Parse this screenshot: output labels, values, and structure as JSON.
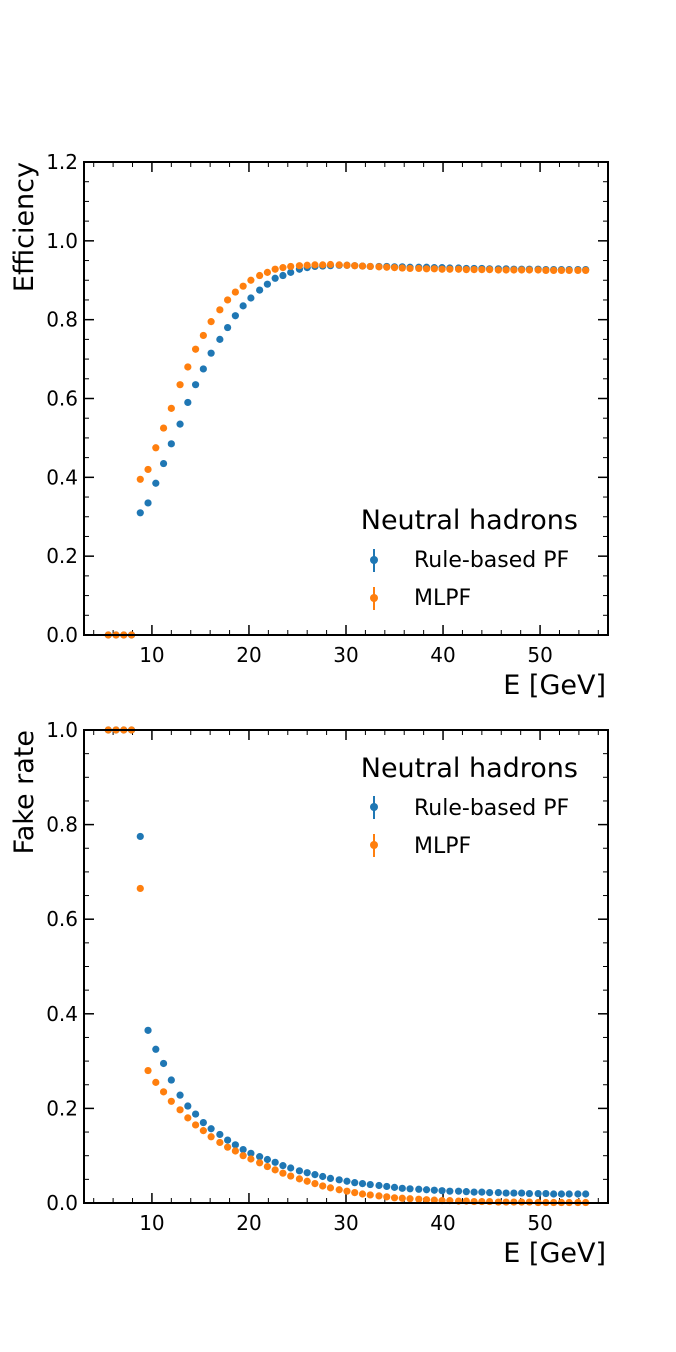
{
  "colors": {
    "rule_based": "#1f77b4",
    "mlpf": "#ff7f0e",
    "axes": "#000000",
    "background": "#ffffff"
  },
  "chart_data": [
    {
      "type": "scatter",
      "ylabel": "Efficiency",
      "xlabel": "E [GeV]",
      "xlim": [
        3,
        57
      ],
      "ylim": [
        0,
        1.2
      ],
      "xticks": [
        10,
        20,
        30,
        40,
        50
      ],
      "xtick_labels": [
        "10",
        "20",
        "30",
        "40",
        "50"
      ],
      "yticks": [
        0,
        0.2,
        0.4,
        0.6,
        0.8,
        1.0,
        1.2
      ],
      "ytick_labels": [
        "0.0",
        "0.2",
        "0.4",
        "0.6",
        "0.8",
        "1.0",
        "1.2"
      ],
      "grid": false,
      "legend_position": "lower-right",
      "legend": {
        "title": "Neutral hadrons",
        "entries": [
          "Rule-based PF",
          "MLPF"
        ]
      },
      "series": [
        {
          "name": "Rule-based PF",
          "color": "#1f77b4",
          "x": [
            5.5,
            6.3,
            7.1,
            7.9,
            8.8,
            9.6,
            10.4,
            11.2,
            12.0,
            12.9,
            13.7,
            14.5,
            15.3,
            16.1,
            17.0,
            17.8,
            18.6,
            19.4,
            20.2,
            21.1,
            21.9,
            22.7,
            23.5,
            24.3,
            25.2,
            26.0,
            26.8,
            27.6,
            28.4,
            29.3,
            30.1,
            30.9,
            31.7,
            32.5,
            33.4,
            34.2,
            35.0,
            35.8,
            36.6,
            37.5,
            38.3,
            39.1,
            39.9,
            40.7,
            41.6,
            42.4,
            43.2,
            44.0,
            44.8,
            45.7,
            46.5,
            47.3,
            48.1,
            48.9,
            49.8,
            50.6,
            51.4,
            52.2,
            53.0,
            53.9,
            54.7
          ],
          "y": [
            0.0,
            0.0,
            0.0,
            0.0,
            0.31,
            0.335,
            0.385,
            0.435,
            0.485,
            0.535,
            0.59,
            0.635,
            0.675,
            0.715,
            0.75,
            0.78,
            0.81,
            0.835,
            0.855,
            0.875,
            0.89,
            0.905,
            0.912,
            0.92,
            0.928,
            0.932,
            0.935,
            0.936,
            0.937,
            0.938,
            0.938,
            0.937,
            0.936,
            0.935,
            0.935,
            0.935,
            0.934,
            0.934,
            0.933,
            0.933,
            0.933,
            0.932,
            0.932,
            0.931,
            0.931,
            0.93,
            0.93,
            0.93,
            0.929,
            0.929,
            0.929,
            0.928,
            0.928,
            0.928,
            0.928,
            0.927,
            0.927,
            0.927,
            0.927,
            0.927,
            0.927
          ]
        },
        {
          "name": "MLPF",
          "color": "#ff7f0e",
          "x": [
            5.5,
            6.3,
            7.1,
            7.9,
            8.8,
            9.6,
            10.4,
            11.2,
            12.0,
            12.9,
            13.7,
            14.5,
            15.3,
            16.1,
            17.0,
            17.8,
            18.6,
            19.4,
            20.2,
            21.1,
            21.9,
            22.7,
            23.5,
            24.3,
            25.2,
            26.0,
            26.8,
            27.6,
            28.4,
            29.3,
            30.1,
            30.9,
            31.7,
            32.5,
            33.4,
            34.2,
            35.0,
            35.8,
            36.6,
            37.5,
            38.3,
            39.1,
            39.9,
            40.7,
            41.6,
            42.4,
            43.2,
            44.0,
            44.8,
            45.7,
            46.5,
            47.3,
            48.1,
            48.9,
            49.8,
            50.6,
            51.4,
            52.2,
            53.0,
            53.9,
            54.7
          ],
          "y": [
            0.0,
            0.0,
            0.0,
            0.0,
            0.395,
            0.42,
            0.475,
            0.525,
            0.575,
            0.635,
            0.68,
            0.725,
            0.76,
            0.795,
            0.825,
            0.85,
            0.87,
            0.885,
            0.9,
            0.912,
            0.92,
            0.928,
            0.932,
            0.935,
            0.937,
            0.938,
            0.939,
            0.939,
            0.94,
            0.939,
            0.938,
            0.937,
            0.936,
            0.935,
            0.934,
            0.933,
            0.932,
            0.931,
            0.93,
            0.93,
            0.929,
            0.929,
            0.928,
            0.928,
            0.928,
            0.927,
            0.927,
            0.927,
            0.927,
            0.926,
            0.926,
            0.926,
            0.926,
            0.926,
            0.926,
            0.925,
            0.925,
            0.925,
            0.925,
            0.925,
            0.925
          ]
        }
      ]
    },
    {
      "type": "scatter",
      "ylabel": "Fake rate",
      "xlabel": "E [GeV]",
      "xlim": [
        3,
        57
      ],
      "ylim": [
        0,
        1.0
      ],
      "xticks": [
        10,
        20,
        30,
        40,
        50
      ],
      "xtick_labels": [
        "10",
        "20",
        "30",
        "40",
        "50"
      ],
      "yticks": [
        0,
        0.2,
        0.4,
        0.6,
        0.8,
        1.0
      ],
      "ytick_labels": [
        "0.0",
        "0.2",
        "0.4",
        "0.6",
        "0.8",
        "1.0"
      ],
      "grid": false,
      "legend_position": "top-right",
      "legend": {
        "title": "Neutral hadrons",
        "entries": [
          "Rule-based PF",
          "MLPF"
        ]
      },
      "series": [
        {
          "name": "Rule-based PF",
          "color": "#1f77b4",
          "x": [
            5.5,
            6.3,
            7.1,
            7.9,
            8.8,
            9.6,
            10.4,
            11.2,
            12.0,
            12.9,
            13.7,
            14.5,
            15.3,
            16.1,
            17.0,
            17.8,
            18.6,
            19.4,
            20.2,
            21.1,
            21.9,
            22.7,
            23.5,
            24.3,
            25.2,
            26.0,
            26.8,
            27.6,
            28.4,
            29.3,
            30.1,
            30.9,
            31.7,
            32.5,
            33.4,
            34.2,
            35.0,
            35.8,
            36.6,
            37.5,
            38.3,
            39.1,
            39.9,
            40.7,
            41.6,
            42.4,
            43.2,
            44.0,
            44.8,
            45.7,
            46.5,
            47.3,
            48.1,
            48.9,
            49.8,
            50.6,
            51.4,
            52.2,
            53.0,
            53.9,
            54.7
          ],
          "y": [
            1.0,
            1.0,
            1.0,
            1.0,
            0.775,
            0.365,
            0.325,
            0.295,
            0.26,
            0.228,
            0.205,
            0.188,
            0.17,
            0.157,
            0.145,
            0.133,
            0.123,
            0.113,
            0.105,
            0.098,
            0.092,
            0.086,
            0.079,
            0.074,
            0.068,
            0.064,
            0.06,
            0.056,
            0.052,
            0.049,
            0.046,
            0.043,
            0.041,
            0.039,
            0.037,
            0.035,
            0.033,
            0.031,
            0.03,
            0.029,
            0.028,
            0.027,
            0.026,
            0.025,
            0.025,
            0.024,
            0.023,
            0.023,
            0.022,
            0.022,
            0.021,
            0.021,
            0.021,
            0.02,
            0.02,
            0.02,
            0.019,
            0.019,
            0.019,
            0.019,
            0.019
          ]
        },
        {
          "name": "MLPF",
          "color": "#ff7f0e",
          "x": [
            5.5,
            6.3,
            7.1,
            7.9,
            8.8,
            9.6,
            10.4,
            11.2,
            12.0,
            12.9,
            13.7,
            14.5,
            15.3,
            16.1,
            17.0,
            17.8,
            18.6,
            19.4,
            20.2,
            21.1,
            21.9,
            22.7,
            23.5,
            24.3,
            25.2,
            26.0,
            26.8,
            27.6,
            28.4,
            29.3,
            30.1,
            30.9,
            31.7,
            32.5,
            33.4,
            34.2,
            35.0,
            35.8,
            36.6,
            37.5,
            38.3,
            39.1,
            39.9,
            40.7,
            41.6,
            42.4,
            43.2,
            44.0,
            44.8,
            45.7,
            46.5,
            47.3,
            48.1,
            48.9,
            49.8,
            50.6,
            51.4,
            52.2,
            53.0,
            53.9,
            54.7
          ],
          "y": [
            1.0,
            1.0,
            1.0,
            1.0,
            0.665,
            0.28,
            0.255,
            0.235,
            0.215,
            0.197,
            0.18,
            0.165,
            0.153,
            0.14,
            0.128,
            0.118,
            0.11,
            0.1,
            0.093,
            0.085,
            0.077,
            0.07,
            0.063,
            0.057,
            0.051,
            0.046,
            0.041,
            0.036,
            0.032,
            0.028,
            0.025,
            0.022,
            0.019,
            0.017,
            0.015,
            0.013,
            0.011,
            0.01,
            0.009,
            0.008,
            0.007,
            0.006,
            0.005,
            0.005,
            0.004,
            0.004,
            0.003,
            0.003,
            0.003,
            0.002,
            0.002,
            0.002,
            0.002,
            0.002,
            0.001,
            0.001,
            0.001,
            0.001,
            0.001,
            0.001,
            0.001
          ]
        }
      ]
    }
  ]
}
